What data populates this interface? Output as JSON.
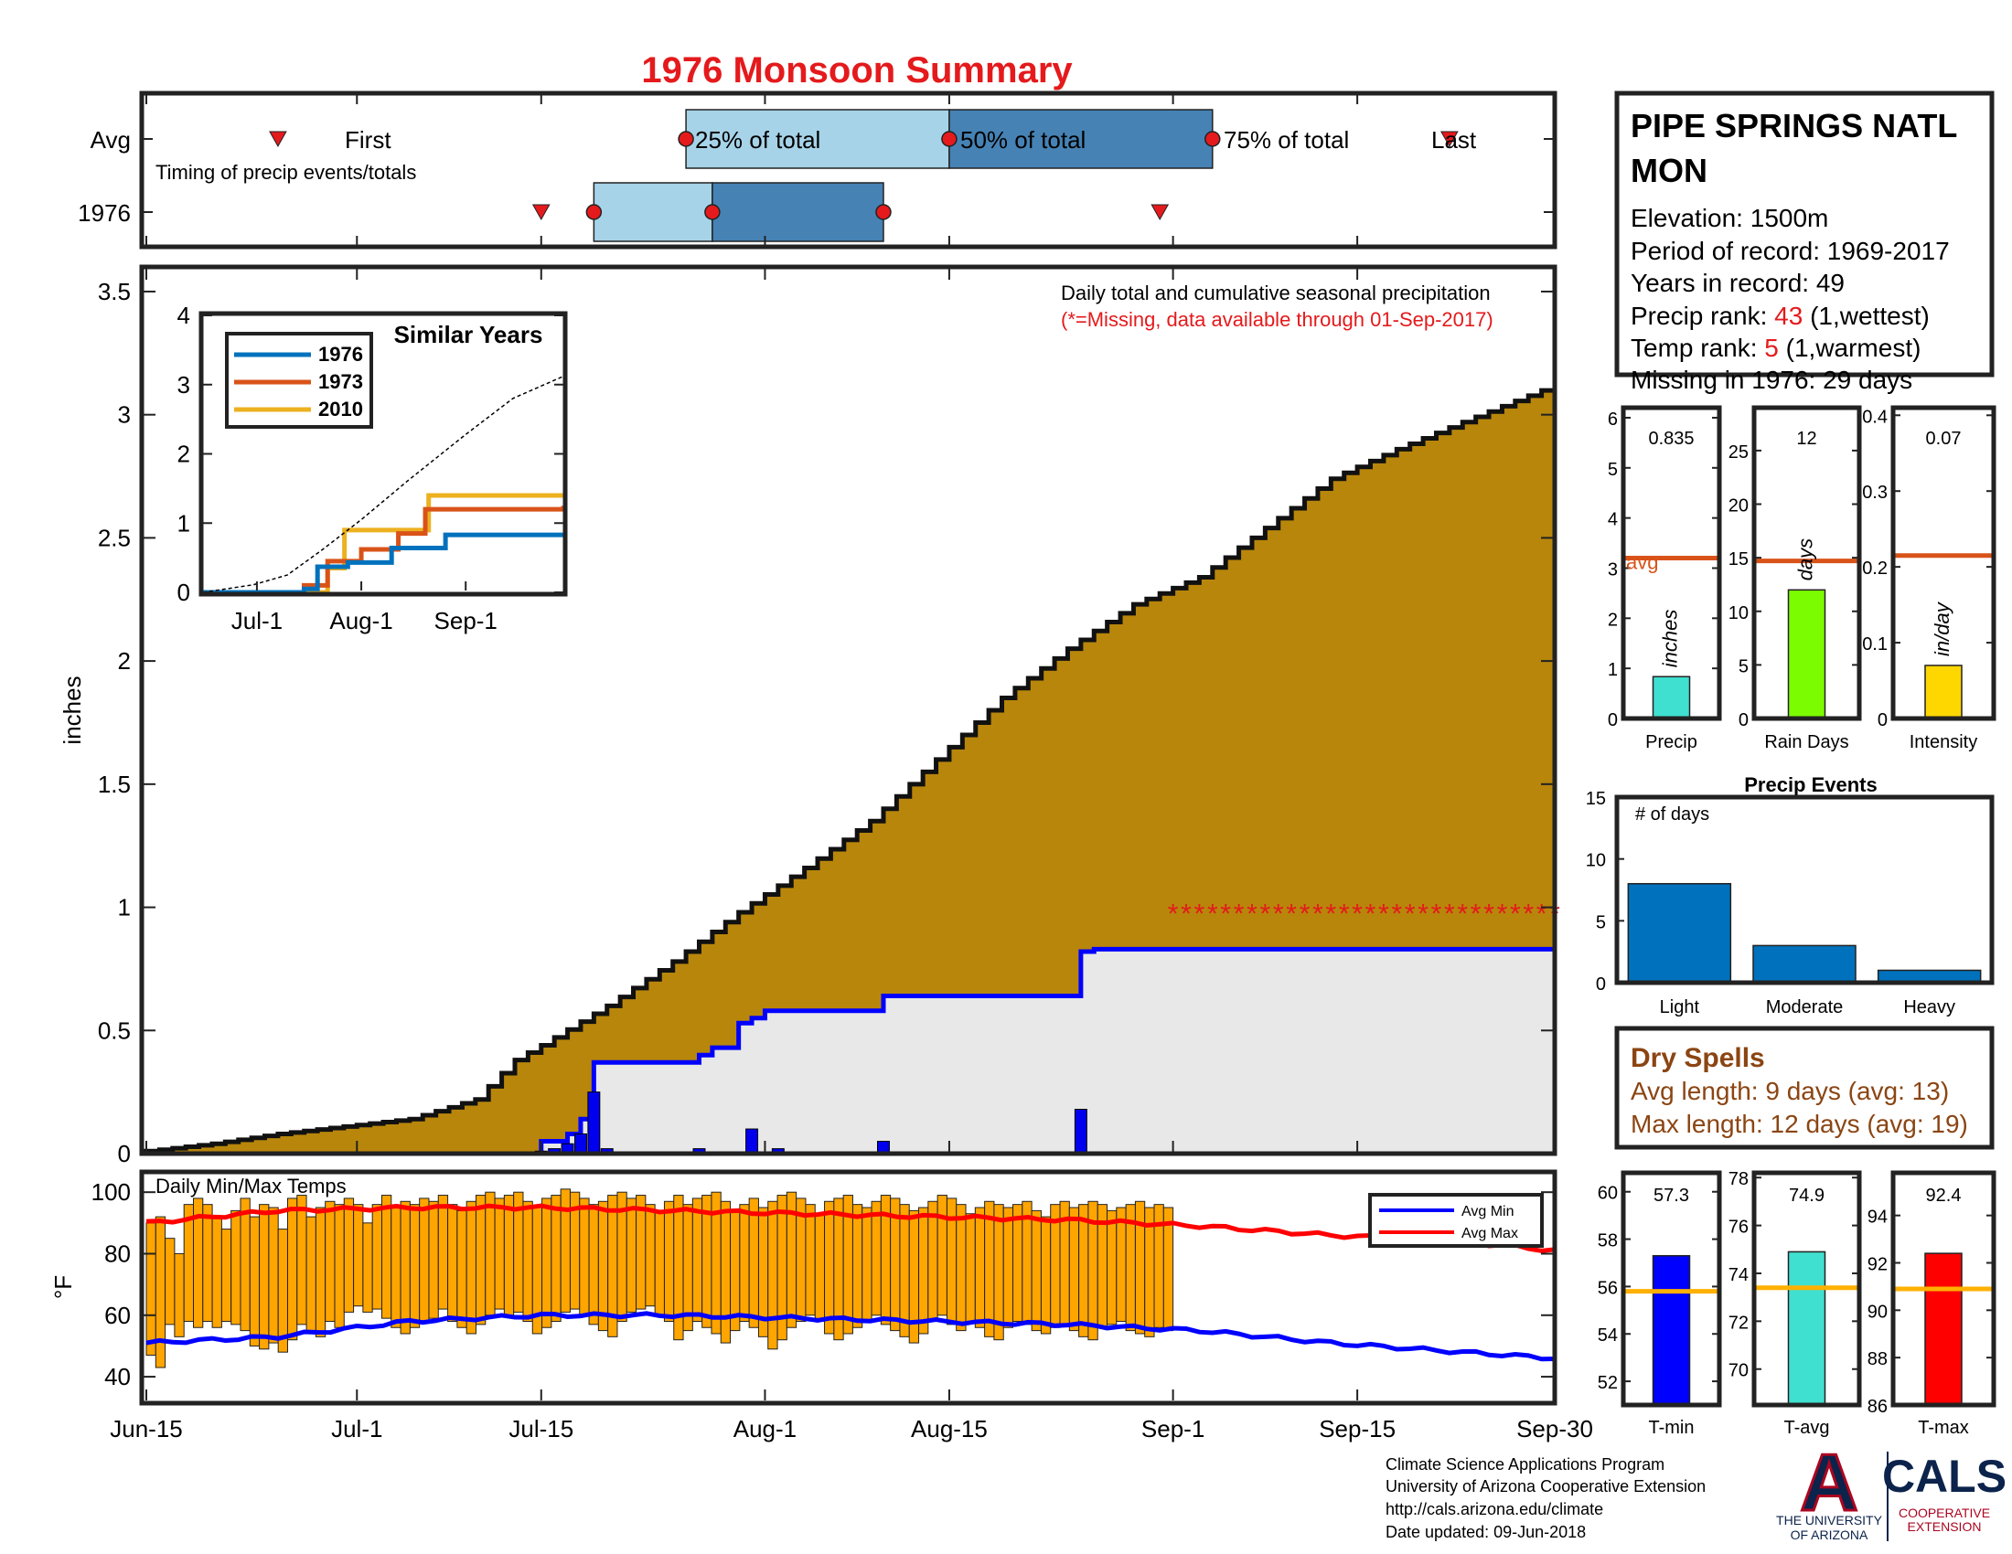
{
  "figure": {
    "title": "1976 Monsoon Summary",
    "colors": {
      "cum_avg_fill": "#b8860b",
      "cum_year_fill": "#e8e8e8",
      "cum_year_line": "#0000ff",
      "daily_bar": "#0000ee",
      "temp_bar": "#ffa500",
      "avg_min_line": "#0000ff",
      "avg_max_line": "#ff0000",
      "light_blue": "#a6d3e8",
      "dark_blue": "#4682b4",
      "marker_red": "#e41a1c",
      "avg_line": "#d95319"
    }
  },
  "timing_panel": {
    "row_labels": [
      "Avg",
      "1976"
    ],
    "note": "Timing of precip events/totals",
    "avg_labels": {
      "first": "First",
      "p25": "25% of total",
      "p50": "50% of total",
      "p75": "75% of total",
      "last": "Last"
    },
    "avg_days": {
      "first": "Jun-25",
      "p25": "Jul-26",
      "p50": "Aug-15",
      "p75": "Sep-4",
      "last": "Sep-22"
    },
    "year_days": {
      "first": "Jul-15",
      "p25": "Jul-19",
      "p50": "Jul-28",
      "p75": "Aug-10",
      "last": "Aug-31"
    }
  },
  "precip_panel": {
    "ylabel": "inches",
    "y_ticks": [
      "0",
      "0.5",
      "1",
      "1.5",
      "2",
      "2.5",
      "3",
      "3.5"
    ],
    "x_ticks": [
      "Jun-15",
      "Jul-1",
      "Jul-15",
      "Aug-1",
      "Aug-15",
      "Sep-1",
      "Sep-15",
      "Sep-30"
    ],
    "annotation": "Daily total and cumulative seasonal precipitation",
    "missing_note": "(*=Missing, data available through 01-Sep-2017)",
    "missing_marker": "*"
  },
  "similar_years": {
    "title": "Similar Years",
    "x_ticks": [
      "Jul-1",
      "Aug-1",
      "Sep-1"
    ],
    "y_ticks": [
      "0",
      "1",
      "2",
      "3",
      "4"
    ],
    "legend": [
      {
        "label": "1976",
        "color": "#0072bd"
      },
      {
        "label": "1973",
        "color": "#d95319"
      },
      {
        "label": "2010",
        "color": "#edb120"
      }
    ]
  },
  "temp_panel": {
    "ylabel": "°F",
    "note": "Daily Min/Max Temps",
    "y_ticks": [
      "40",
      "60",
      "80",
      "100"
    ],
    "legend": {
      "min": "Avg Min",
      "max": "Avg Max"
    }
  },
  "station": {
    "name_line1": "PIPE SPRINGS NATL",
    "name_line2": "MON",
    "elevation": "Elevation: 1500m",
    "period": "Period of record: 1969-2017",
    "years": "Years in record: 49",
    "precip_rank_label": "Precip rank: ",
    "precip_rank": "43",
    "precip_rank_note": " (1,wettest)",
    "temp_rank_label": "Temp rank: ",
    "temp_rank": "5",
    "temp_rank_note": " (1,warmest)",
    "missing": "Missing in 1976: 29 days"
  },
  "stat_bars": [
    {
      "label": "Precip",
      "value_text": "0.835",
      "value": 0.835,
      "avg": 3.2,
      "ymax": 6.2,
      "ticks": [
        "0",
        "1",
        "2",
        "3",
        "4",
        "5",
        "6"
      ],
      "tick_vals": [
        0,
        1,
        2,
        3,
        4,
        5,
        6
      ],
      "unit": "inches",
      "color": "#40e0d0",
      "avg_label": "avg"
    },
    {
      "label": "Rain Days",
      "value_text": "12",
      "value": 12,
      "avg": 14.7,
      "ymax": 29,
      "ticks": [
        "0",
        "5",
        "10",
        "15",
        "20",
        "25"
      ],
      "tick_vals": [
        0,
        5,
        10,
        15,
        20,
        25
      ],
      "unit": "days",
      "color": "#7cfc00"
    },
    {
      "label": "Intensity",
      "value_text": "0.07",
      "value": 0.07,
      "avg": 0.215,
      "ymax": 0.41,
      "ticks": [
        "0",
        "0.1",
        "0.2",
        "0.3",
        "0.4"
      ],
      "tick_vals": [
        0,
        0.1,
        0.2,
        0.3,
        0.4
      ],
      "unit": "in/day",
      "color": "#ffd700"
    }
  ],
  "precip_events": {
    "title": "Precip Events",
    "ylabel": "# of days",
    "categories": [
      "Light",
      "Moderate",
      "Heavy"
    ],
    "values": [
      8,
      3,
      1
    ],
    "ticks": [
      "0",
      "5",
      "10",
      "15"
    ],
    "color": "#0072bd"
  },
  "dry_spells": {
    "title": "Dry Spells",
    "avg_line": "Avg length: 9 days (avg: 13)",
    "max_line": "Max length: 12 days (avg: 19)"
  },
  "temp_bars": [
    {
      "label": "T-min",
      "value_text": "57.3",
      "value": 57.3,
      "avg": 55.8,
      "ymin": 51,
      "ymax": 60.8,
      "ticks": [
        "52",
        "54",
        "56",
        "58",
        "60"
      ],
      "tick_vals": [
        52,
        54,
        56,
        58,
        60
      ],
      "color": "#0000ff"
    },
    {
      "label": "T-avg",
      "value_text": "74.9",
      "value": 74.9,
      "avg": 73.4,
      "ymin": 68.5,
      "ymax": 78.2,
      "ticks": [
        "70",
        "72",
        "74",
        "76",
        "78"
      ],
      "tick_vals": [
        70,
        72,
        74,
        76,
        78
      ],
      "color": "#40e0d0"
    },
    {
      "label": "T-max",
      "value_text": "92.4",
      "value": 92.4,
      "avg": 90.9,
      "ymin": 86,
      "ymax": 95.8,
      "ticks": [
        "86",
        "88",
        "90",
        "92",
        "94"
      ],
      "tick_vals": [
        86,
        88,
        90,
        92,
        94
      ],
      "color": "#ff0000"
    }
  ],
  "footer": {
    "line1": "Climate Science Applications Program",
    "line2": "University of Arizona Cooperative Extension",
    "line3": "http://cals.arizona.edu/climate",
    "line4": " Date updated: 09-Jun-2018",
    "logo_a": "A",
    "logo_univ1": "THE UNIVERSITY",
    "logo_univ2": "OF ARIZONA",
    "logo_cals": "CALS",
    "logo_coop1": "COOPERATIVE",
    "logo_coop2": "EXTENSION"
  },
  "chart_data": [
    {
      "type": "area",
      "title": "Daily total and cumulative seasonal precipitation",
      "xlabel": "",
      "ylabel": "inches",
      "ylim": [
        0,
        3.6
      ],
      "x_range": [
        "Jun-15",
        "Sep-30"
      ],
      "series": [
        {
          "name": "",
          "kind": "cumulative-average",
          "x": [
            "Jun-15",
            "Jun-20",
            "Jun-25",
            "Jun-30",
            "Jul-5",
            "Jul-10",
            "Jul-13",
            "Jul-15",
            "Jul-20",
            "Jul-25",
            "Jul-30",
            "Aug-4",
            "Aug-9",
            "Aug-14",
            "Aug-19",
            "Aug-24",
            "Aug-29",
            "Sep-3",
            "Sep-8",
            "Sep-13",
            "Sep-18",
            "Sep-23",
            "Sep-30"
          ],
          "y": [
            0.01,
            0.04,
            0.08,
            0.11,
            0.14,
            0.22,
            0.38,
            0.44,
            0.6,
            0.78,
            0.98,
            1.16,
            1.35,
            1.6,
            1.85,
            2.05,
            2.23,
            2.34,
            2.54,
            2.74,
            2.86,
            2.97,
            3.12
          ]
        },
        {
          "name": "",
          "kind": "cumulative-1976",
          "x": [
            "Jun-15",
            "Jul-14",
            "Jul-15",
            "Jul-17",
            "Jul-18",
            "Jul-19",
            "Jul-27",
            "Jul-28",
            "Jul-30",
            "Jul-31",
            "Aug-1",
            "Aug-9",
            "Aug-10",
            "Aug-25",
            "Aug-26",
            "Sep-30"
          ],
          "y": [
            0,
            0,
            0.05,
            0.08,
            0.14,
            0.37,
            0.4,
            0.43,
            0.53,
            0.55,
            0.58,
            0.58,
            0.64,
            0.82,
            0.83,
            0.835
          ]
        },
        {
          "name": "",
          "kind": "daily",
          "x": [
            "Jul-15",
            "Jul-16",
            "Jul-17",
            "Jul-18",
            "Jul-19",
            "Jul-20",
            "Jul-27",
            "Jul-31",
            "Aug-2",
            "Aug-10",
            "Aug-25"
          ],
          "y": [
            0.01,
            0.02,
            0.04,
            0.08,
            0.25,
            0.02,
            0.02,
            0.1,
            0.02,
            0.05,
            0.18
          ]
        }
      ],
      "missing": {
        "x_range": [
          "Sep-1",
          "Sep-30"
        ],
        "y": 1.0,
        "marker": "*"
      }
    },
    {
      "type": "line",
      "title": "Similar Years",
      "xlabel": "",
      "ylabel": "",
      "ylim": [
        0,
        4
      ],
      "x_ticks": [
        "Jul-1",
        "Aug-1",
        "Sep-1"
      ],
      "series": [
        {
          "name": "1976",
          "x": [
            "Jun-15",
            "Jul-14",
            "Jul-15",
            "Jul-19",
            "Jul-28",
            "Aug-10",
            "Aug-26",
            "Sep-30"
          ],
          "y": [
            0,
            0,
            0.05,
            0.37,
            0.43,
            0.64,
            0.83,
            0.835
          ]
        },
        {
          "name": "1973",
          "x": [
            "Jun-15",
            "Jul-10",
            "Jul-15",
            "Jul-22",
            "Aug-1",
            "Aug-12",
            "Aug-20",
            "Sep-30"
          ],
          "y": [
            0,
            0,
            0.1,
            0.45,
            0.62,
            0.85,
            1.2,
            1.25
          ]
        },
        {
          "name": "2010",
          "x": [
            "Jun-15",
            "Jul-18",
            "Jul-22",
            "Jul-27",
            "Aug-16",
            "Aug-21",
            "Sep-30"
          ],
          "y": [
            0,
            0,
            0.35,
            0.9,
            0.9,
            1.4,
            1.4
          ]
        },
        {
          "name": "",
          "kind": "average",
          "x": [
            "Jun-15",
            "Jun-30",
            "Jul-10",
            "Jul-20",
            "Aug-1",
            "Aug-15",
            "Sep-1",
            "Sep-15",
            "Sep-30"
          ],
          "y": [
            0,
            0.11,
            0.25,
            0.6,
            1.05,
            1.62,
            2.28,
            2.8,
            3.12
          ]
        }
      ]
    },
    {
      "type": "bar",
      "title": "Daily Min/Max Temps",
      "xlabel": "",
      "ylabel": "°F",
      "ylim": [
        32,
        106
      ],
      "note": "daily floating bars min→max, Jun-15 to Sep-1; average min/max lines Jun-15 to Sep-30",
      "daily_range": {
        "x_range": [
          "Jun-15",
          "Sep-1"
        ],
        "min": [
          47,
          43,
          57,
          53,
          58,
          56,
          58,
          56,
          58,
          57,
          55,
          50,
          49,
          51,
          48,
          52,
          57,
          55,
          53,
          58,
          56,
          61,
          63,
          61,
          62,
          59,
          56,
          54,
          56,
          58,
          59,
          62,
          58,
          56,
          54,
          57,
          60,
          62,
          60,
          61,
          58,
          54,
          56,
          58,
          61,
          62,
          60,
          57,
          55,
          53,
          58,
          61,
          62,
          63,
          60,
          58,
          52,
          55,
          58,
          56,
          54,
          51,
          55,
          58,
          56,
          53,
          49,
          52,
          56,
          58,
          60,
          58,
          54,
          52,
          54,
          56,
          58,
          60,
          57,
          55,
          53,
          51,
          54,
          58,
          60,
          57,
          55,
          58,
          56,
          53,
          52,
          56,
          58,
          57,
          55,
          54,
          56,
          57,
          55,
          53,
          52,
          56,
          57,
          58,
          55,
          54,
          53,
          56,
          55
        ],
        "max": [
          90,
          92,
          85,
          80,
          96,
          98,
          96,
          92,
          88,
          94,
          98,
          92,
          96,
          95,
          88,
          98,
          99,
          92,
          95,
          97,
          96,
          98,
          96,
          90,
          96,
          99,
          95,
          97,
          96,
          98,
          97,
          99,
          96,
          94,
          97,
          99,
          100,
          98,
          99,
          100,
          97,
          95,
          98,
          99,
          101,
          100,
          98,
          96,
          97,
          99,
          100,
          98,
          99,
          96,
          94,
          97,
          99,
          96,
          98,
          99,
          100,
          97,
          94,
          96,
          98,
          95,
          97,
          99,
          100,
          98,
          96,
          93,
          97,
          98,
          99,
          96,
          95,
          97,
          99,
          98,
          96,
          94,
          95,
          97,
          99,
          98,
          96,
          93,
          95,
          97,
          96,
          95,
          96,
          97,
          94,
          92,
          96,
          97,
          95,
          96,
          97,
          96,
          94,
          95,
          96,
          97,
          95,
          96,
          95
        ]
      },
      "series": [
        {
          "name": "Avg Min",
          "x": [
            "Jun-15",
            "Jun-25",
            "Jul-5",
            "Jul-15",
            "Jul-25",
            "Aug-4",
            "Aug-14",
            "Aug-24",
            "Sep-3",
            "Sep-13",
            "Sep-23",
            "Sep-30"
          ],
          "y": [
            51,
            53,
            58,
            60,
            60,
            59,
            58,
            57,
            55,
            51,
            48,
            46
          ]
        },
        {
          "name": "Avg Max",
          "x": [
            "Jun-15",
            "Jun-25",
            "Jul-5",
            "Jul-15",
            "Jul-25",
            "Aug-4",
            "Aug-14",
            "Aug-24",
            "Sep-3",
            "Sep-13",
            "Sep-23",
            "Sep-30"
          ],
          "y": [
            90,
            94,
            95,
            95,
            94,
            93,
            92,
            91,
            89,
            86,
            84,
            81
          ]
        }
      ]
    },
    {
      "type": "bar",
      "title": "",
      "categories": [
        "Precip",
        "Rain Days",
        "Intensity"
      ],
      "values": [
        0.835,
        12,
        0.07
      ],
      "averages": [
        3.2,
        14.7,
        0.215
      ]
    },
    {
      "type": "bar",
      "title": "Precip Events",
      "ylabel": "# of days",
      "categories": [
        "Light",
        "Moderate",
        "Heavy"
      ],
      "values": [
        8,
        3,
        1
      ],
      "ylim": [
        0,
        15
      ]
    },
    {
      "type": "bar",
      "title": "",
      "categories": [
        "T-min",
        "T-avg",
        "T-max"
      ],
      "values": [
        57.3,
        74.9,
        92.4
      ],
      "averages": [
        55.8,
        73.4,
        90.9
      ]
    }
  ]
}
